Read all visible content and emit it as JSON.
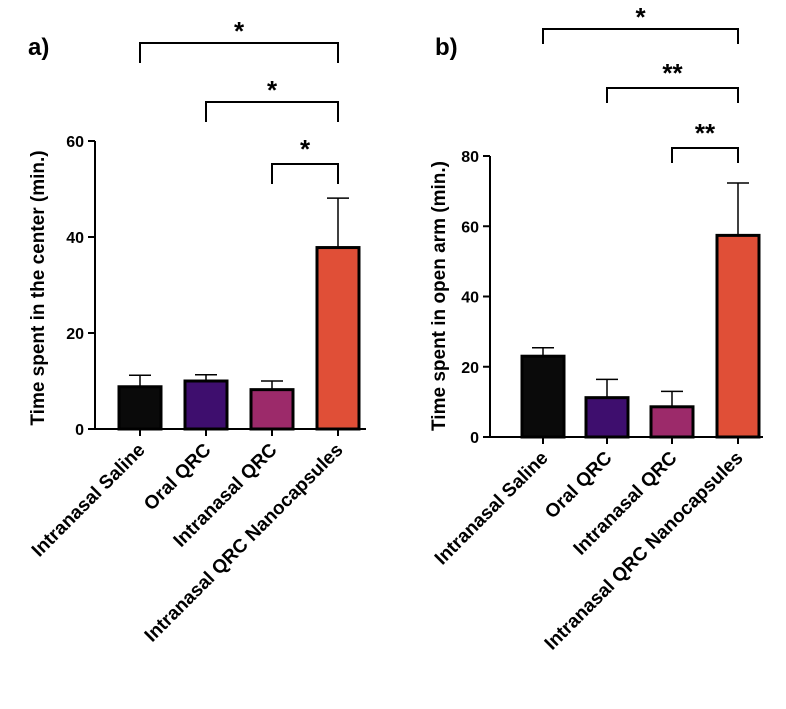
{
  "chart_data": [
    {
      "type": "bar",
      "panel_label": "a)",
      "title": "",
      "xlabel": "",
      "ylabel": "Time spent in the center (min.)",
      "ylim": [
        0,
        60
      ],
      "yticks": [
        0,
        20,
        40,
        60
      ],
      "ytick_labels": [
        "0",
        "20",
        "40",
        "60"
      ],
      "categories": [
        "Intranasal Saline",
        "Oral QRC",
        "Intranasal QRC",
        "Intranasal QRC Nanocapsules"
      ],
      "values": [
        8.8,
        10.0,
        8.2,
        37.8
      ],
      "errors": [
        2.4,
        1.3,
        1.8,
        10.3
      ],
      "colors": [
        "#0a0a0a",
        "#3e0e6e",
        "#9c2a6a",
        "#e04f37"
      ],
      "significance": [
        {
          "from": 0,
          "to": 3,
          "label": "*"
        },
        {
          "from": 1,
          "to": 3,
          "label": "*"
        },
        {
          "from": 2,
          "to": 3,
          "label": "*"
        }
      ]
    },
    {
      "type": "bar",
      "panel_label": "b)",
      "title": "",
      "xlabel": "",
      "ylabel": "Time spent in open arm (min.)",
      "ylim": [
        0,
        80
      ],
      "yticks": [
        0,
        20,
        40,
        60,
        80
      ],
      "ytick_labels": [
        "0",
        "20",
        "40",
        "60",
        "80"
      ],
      "categories": [
        "Intranasal Saline",
        "Oral QRC",
        "Intranasal QRC",
        "Intranasal QRC Nanocapsules"
      ],
      "values": [
        23.0,
        11.2,
        8.6,
        57.4
      ],
      "errors": [
        2.4,
        5.2,
        4.4,
        14.9
      ],
      "colors": [
        "#0a0a0a",
        "#3e0e6e",
        "#9c2a6a",
        "#e04f37"
      ],
      "significance": [
        {
          "from": 0,
          "to": 3,
          "label": "*"
        },
        {
          "from": 1,
          "to": 3,
          "label": "**"
        },
        {
          "from": 2,
          "to": 3,
          "label": "**"
        }
      ]
    }
  ]
}
